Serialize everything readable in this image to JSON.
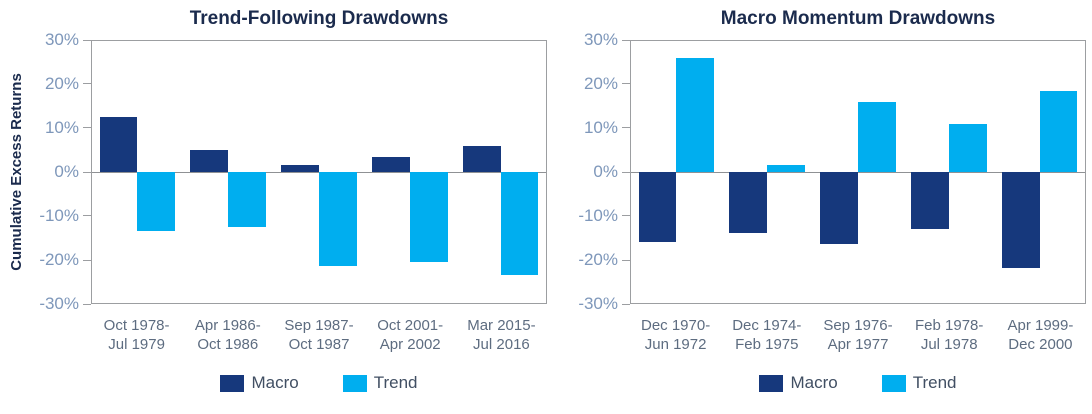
{
  "figure": {
    "background": "#ffffff"
  },
  "colors": {
    "macro": "#16387c",
    "trend": "#00aeef",
    "title_text": "#1b2b4d",
    "axis_line": "#9c9ea1",
    "zero_line": "#8f9194",
    "y_tick_label": "#7e97ba",
    "x_tick_label": "#5d6c80",
    "legend_label": "#414f63"
  },
  "chart_data": [
    {
      "type": "bar",
      "title": "Trend-Following Drawdowns",
      "ylabel": "Cumulative Excess Returns",
      "xlabel": "",
      "ylim": [
        -30,
        30
      ],
      "yticks": [
        "30%",
        "20%",
        "10%",
        "0%",
        "-10%",
        "-20%",
        "-30%"
      ],
      "grid": false,
      "legend_position": "bottom",
      "categories": [
        [
          "Oct 1978-",
          "Jul 1979"
        ],
        [
          "Apr 1986-",
          "Oct 1986"
        ],
        [
          "Sep 1987-",
          "Oct 1987"
        ],
        [
          "Oct 2001-",
          "Apr 2002"
        ],
        [
          "Mar 2015-",
          "Jul 2016"
        ]
      ],
      "series": [
        {
          "name": "Macro",
          "color": "#16387c",
          "values": [
            12.5,
            5,
            1.5,
            3.5,
            6
          ]
        },
        {
          "name": "Trend",
          "color": "#00aeef",
          "values": [
            -13.5,
            -12.5,
            -21.5,
            -20.5,
            -23.5
          ]
        }
      ]
    },
    {
      "type": "bar",
      "title": "Macro Momentum Drawdowns",
      "ylabel": "",
      "xlabel": "",
      "ylim": [
        -30,
        30
      ],
      "yticks": [
        "30%",
        "20%",
        "10%",
        "0%",
        "-10%",
        "-20%",
        "-30%"
      ],
      "grid": false,
      "legend_position": "bottom",
      "categories": [
        [
          "Dec 1970-",
          "Jun 1972"
        ],
        [
          "Dec 1974-",
          "Feb 1975"
        ],
        [
          "Sep 1976-",
          "Apr 1977"
        ],
        [
          "Feb 1978-",
          "Jul 1978"
        ],
        [
          "Apr 1999-",
          "Dec 2000"
        ]
      ],
      "series": [
        {
          "name": "Macro",
          "color": "#16387c",
          "values": [
            -16,
            -14,
            -16.5,
            -13,
            -22
          ]
        },
        {
          "name": "Trend",
          "color": "#00aeef",
          "values": [
            26,
            1.5,
            16,
            11,
            18.5
          ]
        }
      ]
    }
  ]
}
